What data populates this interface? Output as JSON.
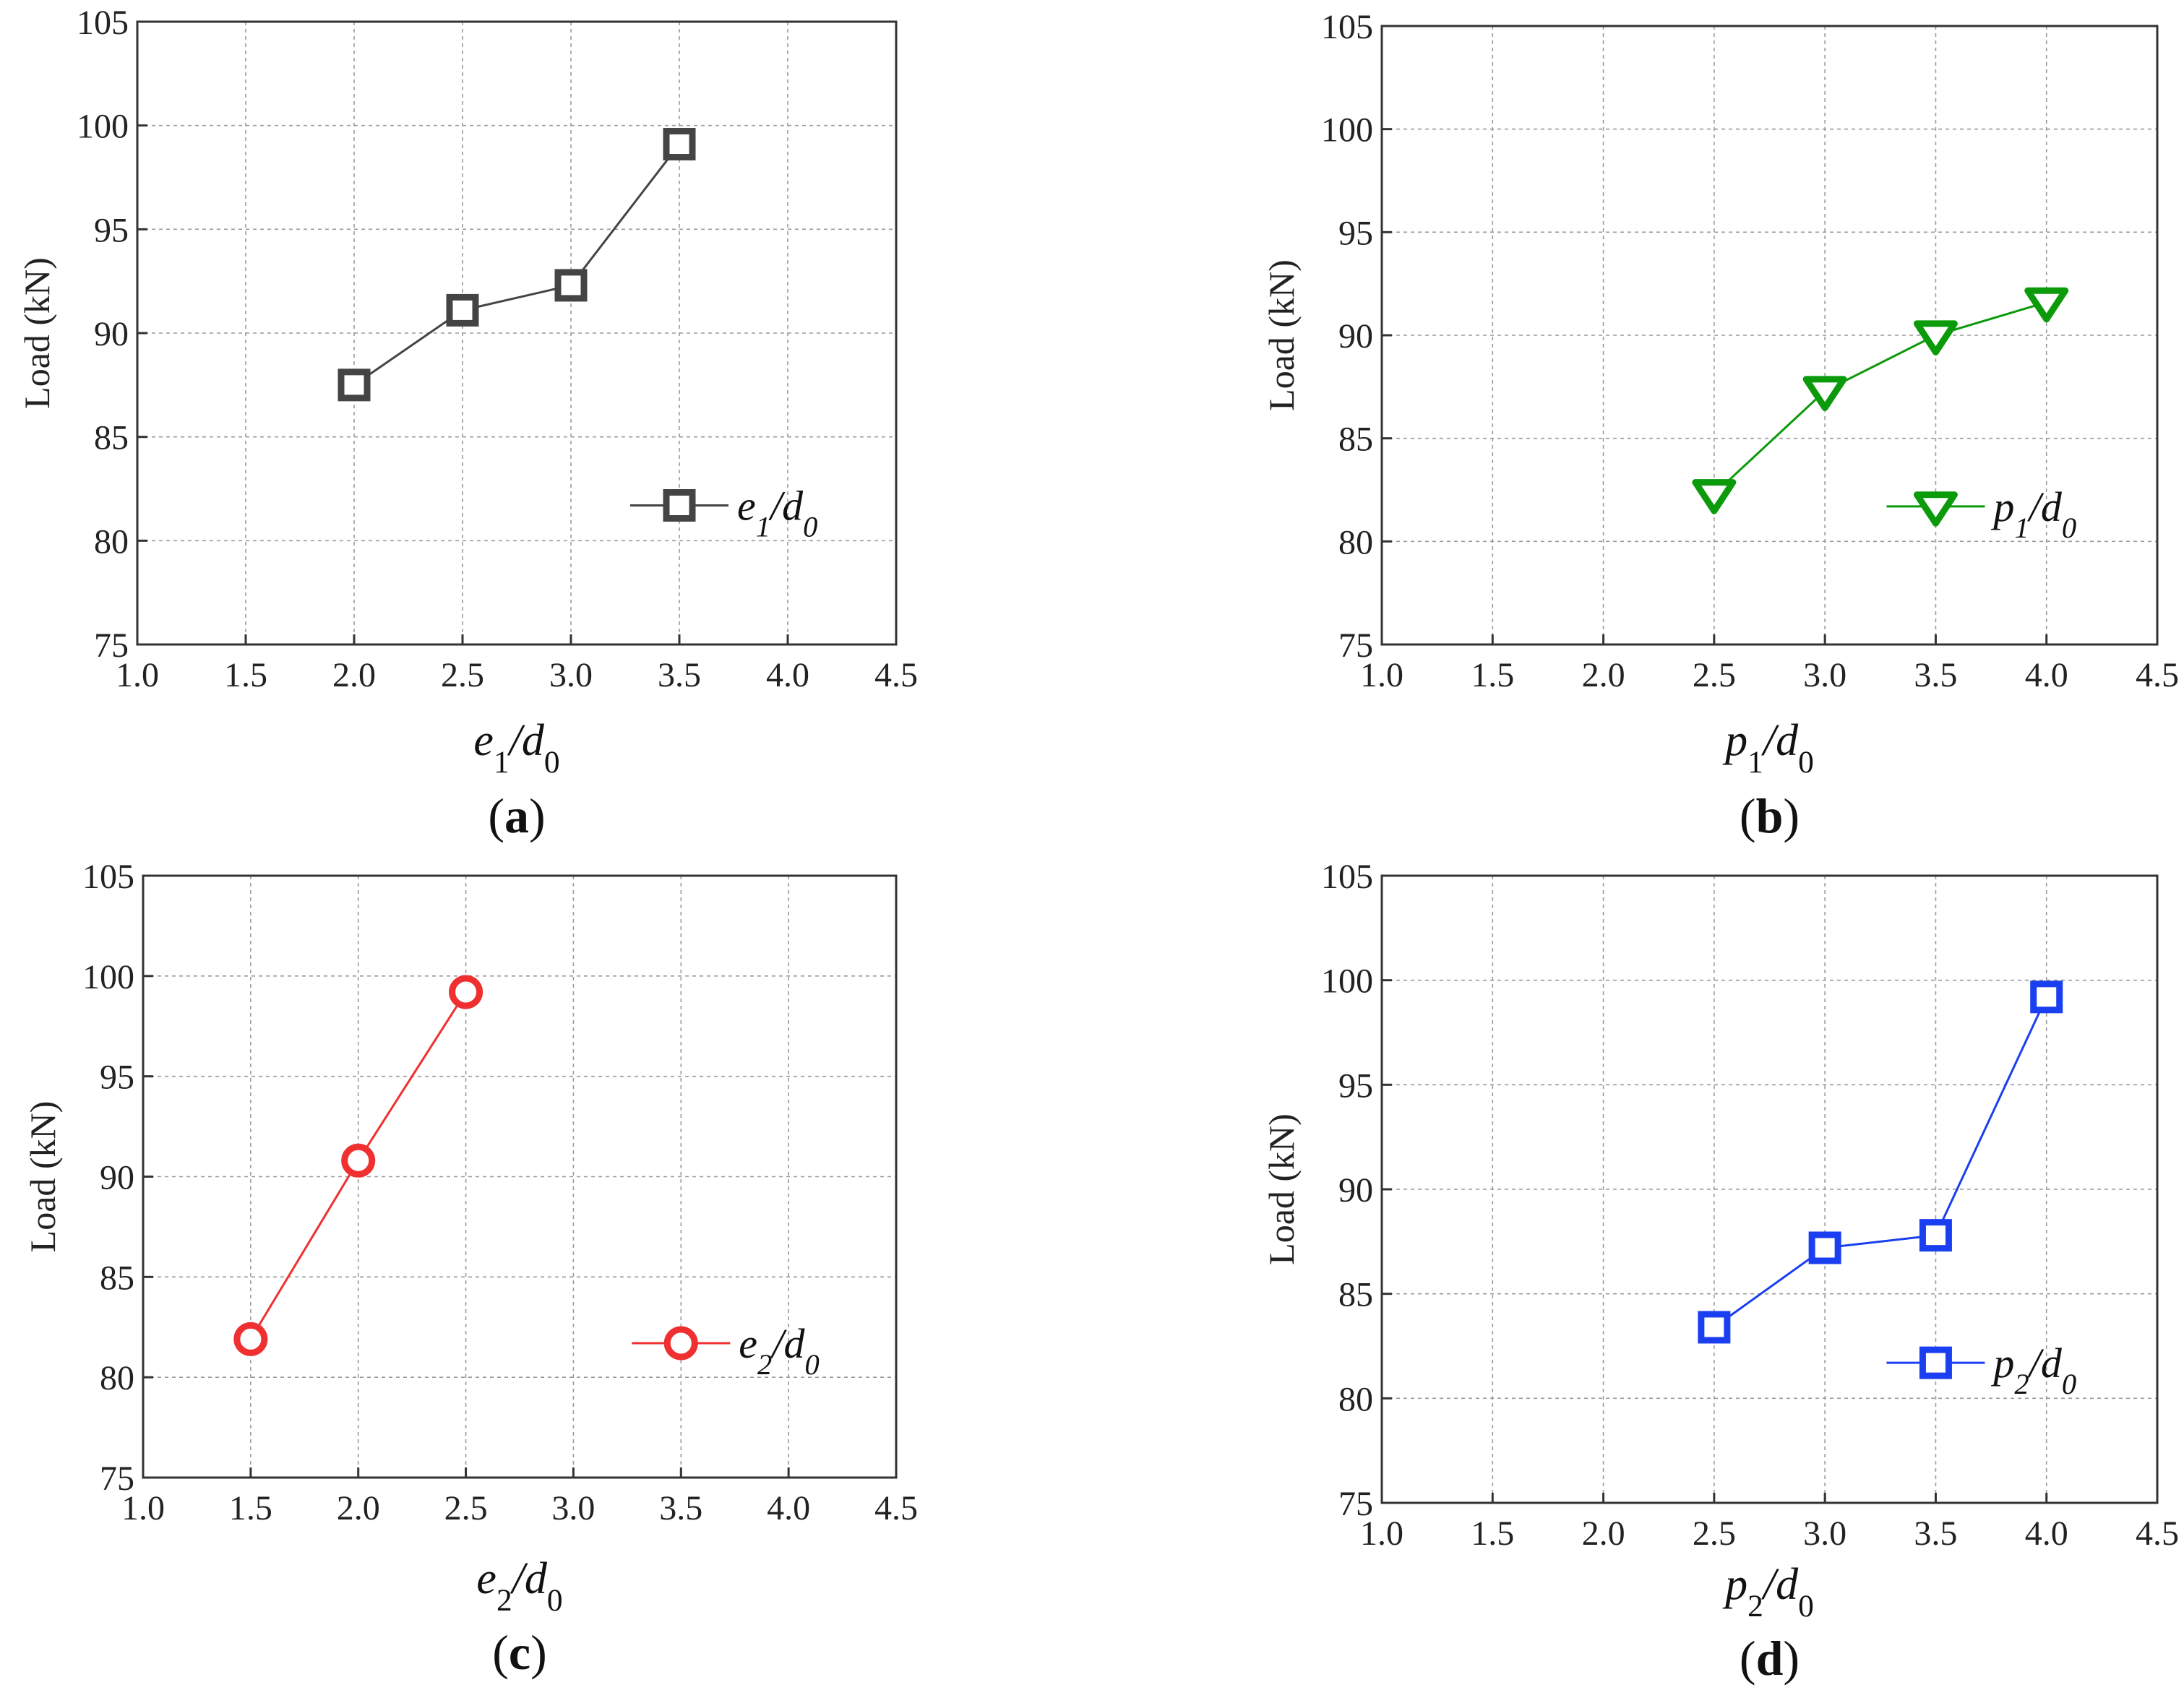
{
  "chart_data": [
    {
      "type": "line",
      "panel": "a",
      "caption": "a",
      "xlabel": {
        "main": "e",
        "sub": "1",
        "tail": "/d",
        "sub2": "0"
      },
      "ylabel": "Load (kN)",
      "xlim": [
        1.0,
        4.5
      ],
      "ylim": [
        75,
        105
      ],
      "xticks": [
        "1.0",
        "1.5",
        "2.0",
        "2.5",
        "3.0",
        "3.5",
        "4.0",
        "4.5"
      ],
      "yticks": [
        "75",
        "80",
        "85",
        "90",
        "95",
        "100",
        "105"
      ],
      "grid": true,
      "series": [
        {
          "name": "e1/d0",
          "legend": {
            "main": "e",
            "sub": "1",
            "tail": "/d",
            "sub2": "0"
          },
          "marker": "square",
          "color": "#444444",
          "x": [
            2.0,
            2.5,
            3.0,
            3.5
          ],
          "y": [
            87.5,
            91.1,
            92.3,
            99.1
          ]
        }
      ],
      "legend_position": "right-lower"
    },
    {
      "type": "line",
      "panel": "b",
      "caption": "b",
      "xlabel": {
        "main": "p",
        "sub": "1",
        "tail": "/d",
        "sub2": "0"
      },
      "ylabel": "Load (kN)",
      "xlim": [
        1.0,
        4.5
      ],
      "ylim": [
        75,
        105
      ],
      "xticks": [
        "1.0",
        "1.5",
        "2.0",
        "2.5",
        "3.0",
        "3.5",
        "4.0",
        "4.5"
      ],
      "yticks": [
        "75",
        "80",
        "85",
        "90",
        "95",
        "100",
        "105"
      ],
      "grid": true,
      "series": [
        {
          "name": "p1/d0",
          "legend": {
            "main": "p",
            "sub": "1",
            "tail": "/d",
            "sub2": "0"
          },
          "marker": "triangle-down",
          "color": "#0a9a0a",
          "x": [
            2.5,
            3.0,
            3.5,
            4.0
          ],
          "y": [
            82.3,
            87.3,
            90.0,
            91.6
          ]
        }
      ],
      "legend_position": "right-lower"
    },
    {
      "type": "line",
      "panel": "c",
      "caption": "c",
      "xlabel": {
        "main": "e",
        "sub": "2",
        "tail": "/d",
        "sub2": "0"
      },
      "ylabel": "Load (kN)",
      "xlim": [
        1.0,
        4.5
      ],
      "ylim": [
        75,
        105
      ],
      "xticks": [
        "1.0",
        "1.5",
        "2.0",
        "2.5",
        "3.0",
        "3.5",
        "4.0",
        "4.5"
      ],
      "yticks": [
        "75",
        "80",
        "85",
        "90",
        "95",
        "100",
        "105"
      ],
      "grid": true,
      "series": [
        {
          "name": "e2/d0",
          "legend": {
            "main": "e",
            "sub": "2",
            "tail": "/d",
            "sub2": "0"
          },
          "marker": "circle",
          "color": "#f03030",
          "x": [
            1.5,
            2.0,
            2.5
          ],
          "y": [
            81.9,
            90.8,
            99.2
          ]
        }
      ],
      "legend_position": "right-lower"
    },
    {
      "type": "line",
      "panel": "d",
      "caption": "d",
      "xlabel": {
        "main": "p",
        "sub": "2",
        "tail": "/d",
        "sub2": "0"
      },
      "ylabel": "Load (kN)",
      "xlim": [
        1.0,
        4.5
      ],
      "ylim": [
        75,
        105
      ],
      "xticks": [
        "1.0",
        "1.5",
        "2.0",
        "2.5",
        "3.0",
        "3.5",
        "4.0",
        "4.5"
      ],
      "yticks": [
        "75",
        "80",
        "85",
        "90",
        "95",
        "100",
        "105"
      ],
      "grid": true,
      "series": [
        {
          "name": "p2/d0",
          "legend": {
            "main": "p",
            "sub": "2",
            "tail": "/d",
            "sub2": "0"
          },
          "marker": "square",
          "color": "#1a3ff0",
          "x": [
            2.5,
            3.0,
            3.5,
            4.0
          ],
          "y": [
            83.4,
            87.2,
            87.8,
            99.2
          ]
        }
      ],
      "legend_position": "right-lower"
    }
  ]
}
